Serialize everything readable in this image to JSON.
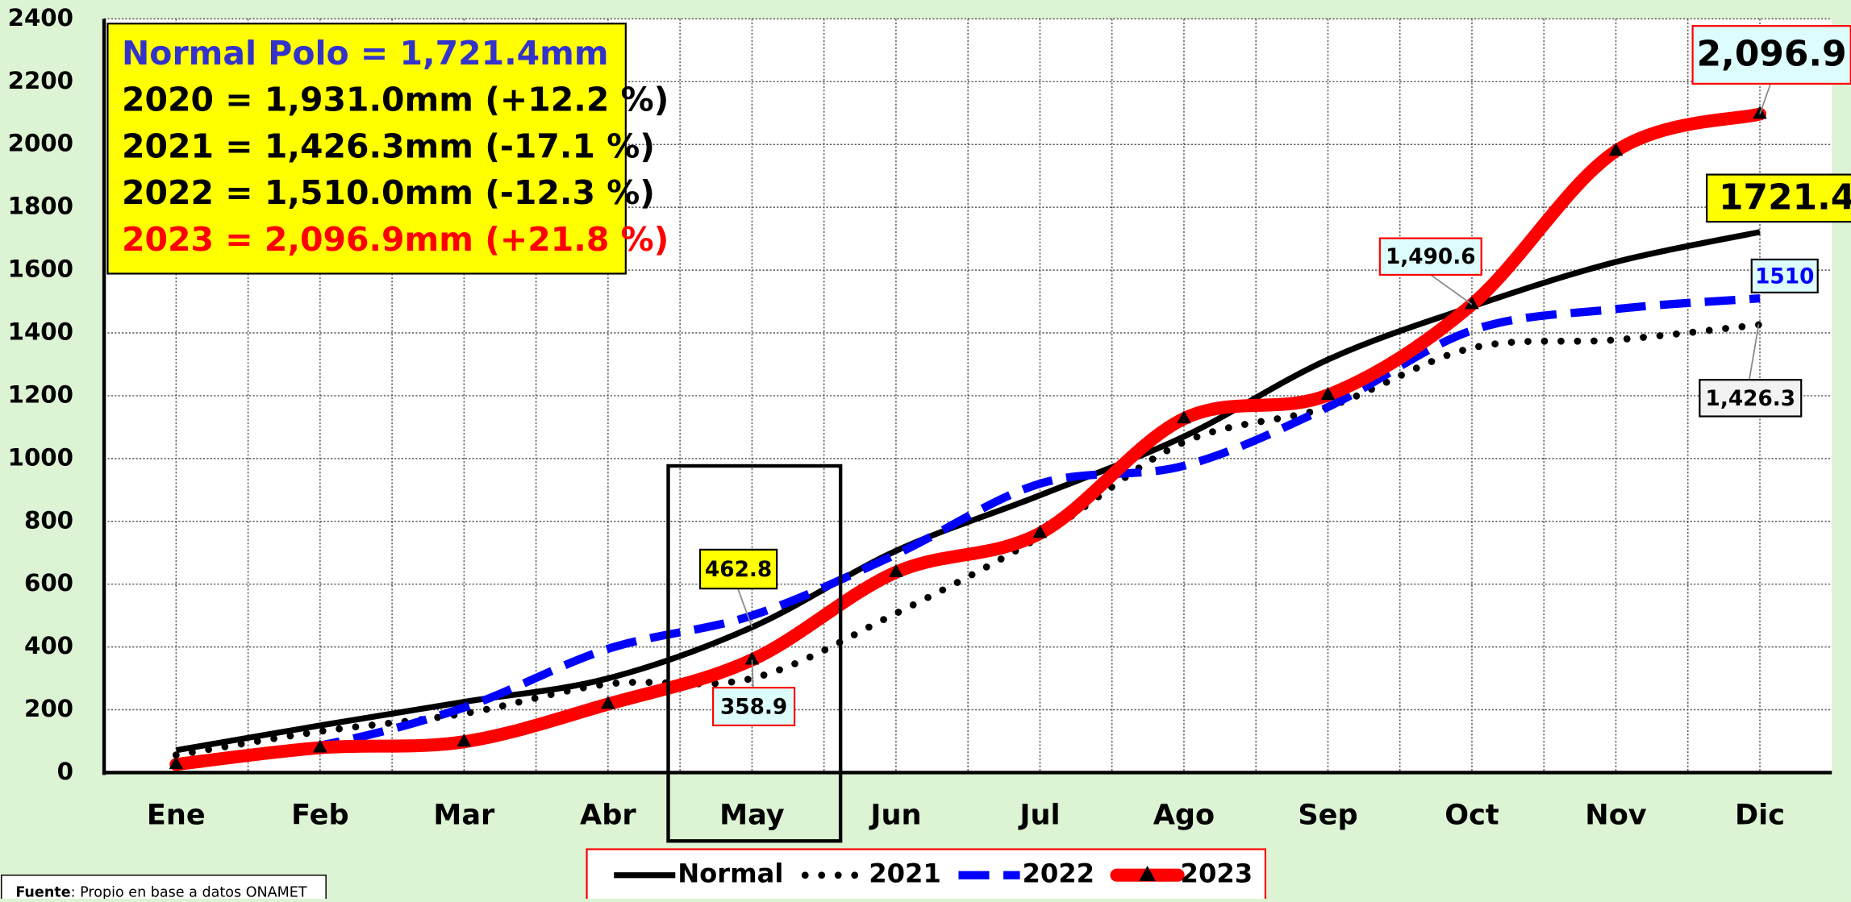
{
  "chart_data": {
    "type": "line",
    "categories": [
      "Ene",
      "Feb",
      "Mar",
      "Abr",
      "May",
      "Jun",
      "Jul",
      "Ago",
      "Sep",
      "Oct",
      "Nov",
      "Dic"
    ],
    "ylim": [
      0,
      2400
    ],
    "yticks": [
      0,
      200,
      400,
      600,
      800,
      1000,
      1200,
      1400,
      1600,
      1800,
      2000,
      2200,
      2400
    ],
    "grid": true,
    "series": [
      {
        "name": "Normal",
        "color": "#000000",
        "style": "solid",
        "values": [
          71,
          150,
          225,
          300,
          462.8,
          706,
          883,
          1070,
          1315,
          1484,
          1626,
          1721.4
        ]
      },
      {
        "name": "2021",
        "color": "#000000",
        "style": "dotted",
        "values": [
          56,
          131,
          188,
          282,
          300,
          507,
          751,
          1052,
          1164,
          1352,
          1378,
          1426.3
        ]
      },
      {
        "name": "2022",
        "color": "#0000ff",
        "style": "dashed",
        "values": [
          26,
          86,
          207,
          394,
          500,
          695,
          920,
          977,
          1164,
          1408,
          1476,
          1510
        ]
      },
      {
        "name": "2023",
        "color": "#ff0000",
        "style": "thick",
        "marker": "triangle",
        "values": [
          26,
          79,
          98,
          218,
          358.9,
          638,
          762,
          1127,
          1202,
          1490.6,
          1979,
          2096.9
        ]
      }
    ],
    "info_box": [
      {
        "text": "Normal Polo = 1,721.4mm",
        "color": "#3333cc"
      },
      {
        "text": "2020 = 1,931.0mm (+12.2 %)",
        "color": "#000000"
      },
      {
        "text": "2021 = 1,426.3mm (-17.1 %)",
        "color": "#000000"
      },
      {
        "text": "2022 = 1,510.0mm (-12.3 %)",
        "color": "#000000"
      },
      {
        "text": "2023 = 2,096.9mm (+21.8 %)",
        "color": "#ff0000"
      }
    ],
    "annotations": [
      "2,096.9",
      "1721.4",
      "1510",
      "1,426.3",
      "1,490.6",
      "462.8",
      "358.9"
    ],
    "source_label": "Fuente",
    "source_text": ": Propio en  base a datos ONAMET"
  }
}
